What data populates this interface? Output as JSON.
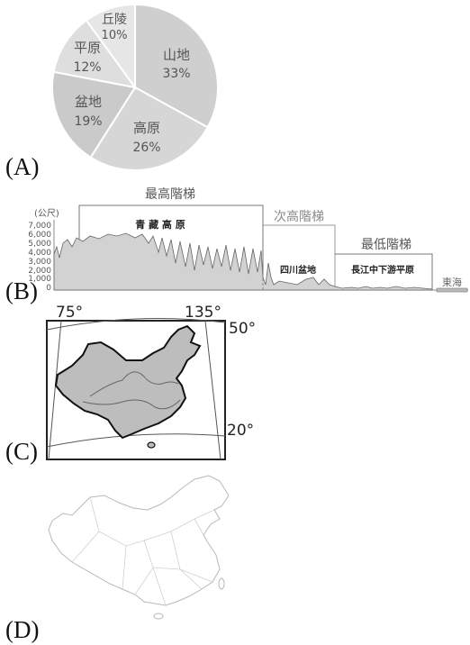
{
  "options": {
    "a": "(A)",
    "b": "(B)",
    "c": "(C)",
    "d": "(D)"
  },
  "pie": {
    "slices": [
      {
        "name": "山地",
        "pct_label": "33%",
        "value": 33,
        "color": "#cfcfcf"
      },
      {
        "name": "高原",
        "pct_label": "26%",
        "value": 26,
        "color": "#d6d6d6"
      },
      {
        "name": "盆地",
        "pct_label": "19%",
        "value": 19,
        "color": "#cacaca"
      },
      {
        "name": "平原",
        "pct_label": "12%",
        "value": 12,
        "color": "#dedede"
      },
      {
        "name": "丘陵",
        "pct_label": "10%",
        "value": 10,
        "color": "#e6e6e6"
      }
    ]
  },
  "profile": {
    "unit": "(公尺)",
    "y_ticks": [
      "7,000",
      "6,000",
      "5,000",
      "4,000",
      "3,000",
      "2,000",
      "1,000",
      "0"
    ],
    "steps": {
      "highest": "最高階梯",
      "middle": "次高階梯",
      "lowest": "最低階梯"
    },
    "regions": {
      "plateau": "青 藏 高 原",
      "basin": "四川盆地",
      "plain": "長江中下游平原",
      "sea": "東海"
    }
  },
  "map_grid": {
    "lon_left": "75°",
    "lon_right": "135°",
    "lat_top": "50°",
    "lat_bottom": "20°"
  },
  "chart_data": [
    {
      "type": "pie",
      "categories": [
        "山地",
        "高原",
        "盆地",
        "平原",
        "丘陵"
      ],
      "values": [
        33,
        26,
        19,
        12,
        10
      ]
    }
  ]
}
